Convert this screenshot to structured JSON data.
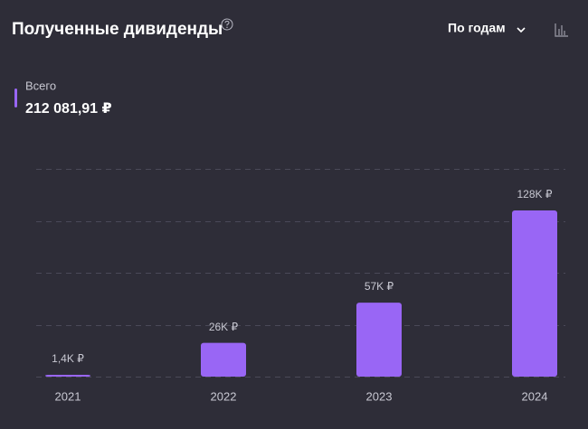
{
  "chart_data": {
    "type": "bar",
    "title": "Полученные дивиденды",
    "period_selector": "По годам",
    "legend_label": "Всего",
    "total": "212 081,91 ₽",
    "categories": [
      "2021",
      "2022",
      "2023",
      "2024"
    ],
    "values": [
      1400,
      26000,
      57000,
      128000
    ],
    "value_labels": [
      "1,4K ₽",
      "26K ₽",
      "57K ₽",
      "128K ₽"
    ],
    "color": "#9966f5",
    "ylim": [
      0,
      160000
    ],
    "yticks": [
      0,
      40000,
      80000,
      120000,
      160000
    ],
    "grid": true
  }
}
